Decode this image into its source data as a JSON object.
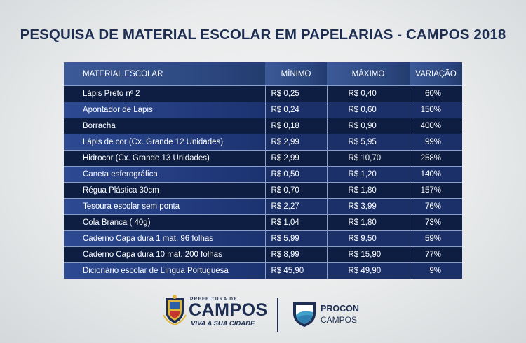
{
  "title": "PESQUISA DE MATERIAL ESCOLAR EM PAPELARIAS - CAMPOS 2018",
  "table": {
    "headers": [
      "MATERIAL ESCOLAR",
      "MÍNIMO",
      "MÁXIMO",
      "VARIAÇÃO"
    ],
    "rows": [
      [
        "Lápis Preto nº 2",
        "R$ 0,25",
        "R$ 0,40",
        "60%"
      ],
      [
        "Apontador de Lápis",
        "R$ 0,24",
        "R$ 0,60",
        "150%"
      ],
      [
        "Borracha",
        "R$ 0,18",
        "R$ 0,90",
        "400%"
      ],
      [
        "Lápis de cor (Cx. Grande 12 Unidades)",
        "R$ 2,99",
        "R$ 5,95",
        "99%"
      ],
      [
        "Hidrocor (Cx. Grande 13 Unidades)",
        "R$ 2,99",
        "R$ 10,70",
        "258%"
      ],
      [
        "Caneta esferográfica",
        "R$ 0,50",
        "R$ 1,20",
        "140%"
      ],
      [
        "Régua Plástica 30cm",
        "R$ 0,70",
        "R$ 1,80",
        "157%"
      ],
      [
        "Tesoura escolar sem ponta",
        "R$ 2,27",
        "R$ 3,99",
        "76%"
      ],
      [
        "Cola Branca ( 40g)",
        "R$ 1,04",
        "R$ 1,80",
        "73%"
      ],
      [
        "Caderno Capa dura 1 mat. 96 folhas",
        "R$ 5,99",
        "R$ 9,50",
        "59%"
      ],
      [
        "Caderno Capa dura 10 mat. 200 folhas",
        "R$ 8,99",
        "R$ 15,90",
        "77%"
      ],
      [
        "Dicionário escolar de Língua Portuguesa",
        "R$ 45,90",
        "R$ 49,90",
        "9%"
      ]
    ]
  },
  "footer": {
    "prefeitura_small": "PREFEITURA DE",
    "prefeitura_name": "CAMPOS",
    "prefeitura_tagline": "VIVA A SUA CIDADE",
    "procon_name": "PROCON",
    "procon_city": "CAMPOS"
  },
  "colors": {
    "title": "#1d2e52",
    "header_bg": "#2c4880",
    "row_dark": "#0e1e42",
    "row_light": "#1b3068"
  },
  "icons": [
    "city-crest-icon",
    "procon-shield-icon"
  ]
}
